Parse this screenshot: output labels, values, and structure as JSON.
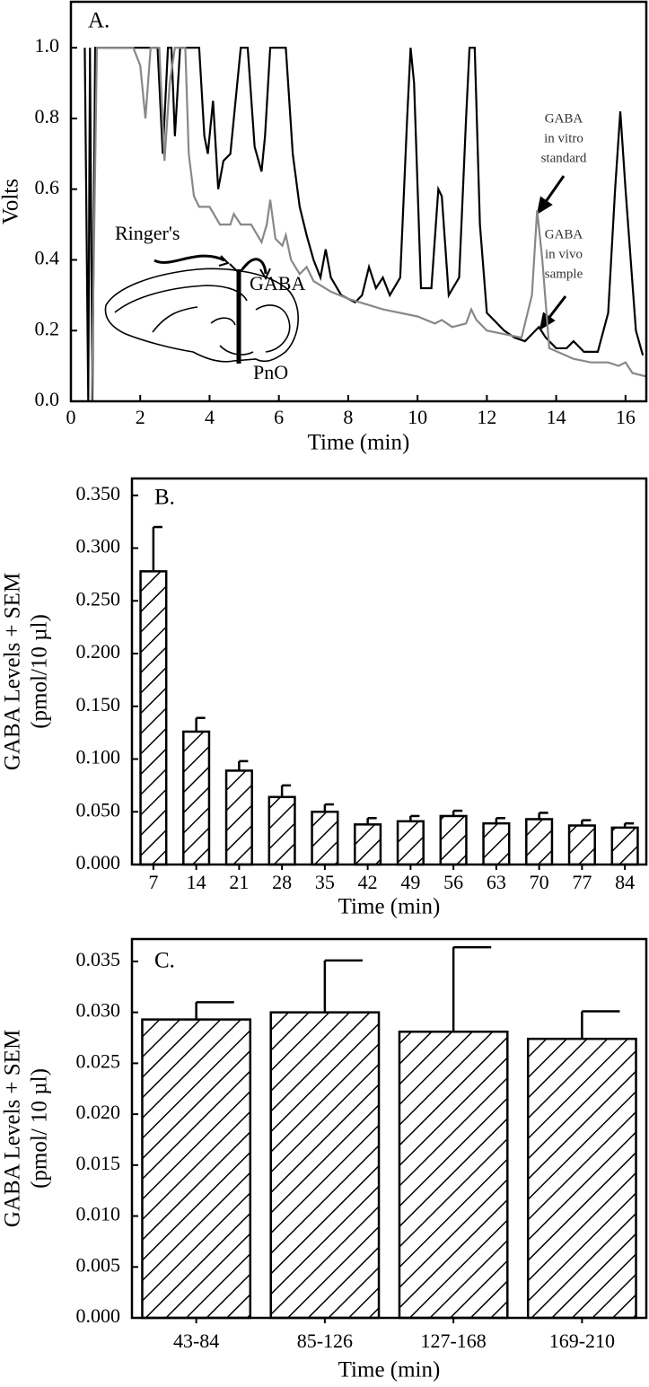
{
  "chart_data": [
    {
      "type": "line",
      "label": "A.",
      "xlabel": "Time (min)",
      "ylabel": "Volts",
      "xlim": [
        0,
        16.6
      ],
      "ylim": [
        0,
        1.13
      ],
      "xticks": [
        0,
        2,
        4,
        6,
        8,
        10,
        12,
        14,
        16
      ],
      "yticks": [
        {
          "value": 0,
          "label": "0.0"
        },
        {
          "value": 0.2,
          "label": "0.2"
        },
        {
          "value": 0.4,
          "label": "0.4"
        },
        {
          "value": 0.6,
          "label": "0.6"
        },
        {
          "value": 0.8,
          "label": "0.8"
        },
        {
          "value": 1,
          "label": "1.0"
        }
      ],
      "annotations": [
        "Ringer's",
        "GABA",
        "PnO"
      ],
      "callouts": [
        [
          "GABA",
          "in vitro",
          "standard"
        ],
        [
          "GABA",
          "in vivo",
          "sample"
        ]
      ],
      "series": [
        {
          "color": "#000000",
          "x": [
            0.4,
            0.5,
            0.55,
            0.62,
            0.7,
            2.5,
            2.65,
            2.8,
            2.9,
            3.0,
            3.15,
            3.7,
            3.85,
            3.95,
            4.1,
            4.25,
            4.4,
            4.6,
            4.8,
            4.9,
            5.1,
            5.3,
            5.5,
            5.6,
            5.75,
            6.2,
            6.4,
            6.6,
            6.8,
            7.0,
            7.2,
            7.35,
            7.5,
            7.8,
            8.2,
            8.4,
            8.6,
            8.8,
            9.0,
            9.2,
            9.5,
            9.7,
            9.8,
            9.9,
            10.1,
            10.4,
            10.6,
            10.7,
            10.9,
            11.2,
            11.4,
            11.5,
            11.65,
            11.8,
            12.0,
            12.5,
            12.8,
            13.1,
            13.4,
            13.5,
            13.7,
            14.0,
            14.3,
            14.5,
            14.8,
            15.2,
            15.5,
            15.7,
            15.85,
            16.0,
            16.3,
            16.5
          ],
          "values": [
            1.0,
            0.0,
            1.0,
            0.0,
            1.0,
            1.0,
            0.7,
            1.0,
            1.0,
            0.75,
            1.0,
            1.0,
            0.75,
            0.7,
            0.85,
            0.6,
            0.68,
            0.7,
            0.9,
            1.0,
            1.0,
            0.72,
            0.65,
            0.75,
            1.0,
            1.0,
            0.7,
            0.55,
            0.47,
            0.4,
            0.35,
            0.43,
            0.35,
            0.3,
            0.28,
            0.3,
            0.38,
            0.32,
            0.35,
            0.3,
            0.35,
            0.8,
            1.0,
            0.9,
            0.32,
            0.32,
            0.6,
            0.58,
            0.3,
            0.35,
            0.8,
            1.0,
            1.0,
            0.5,
            0.25,
            0.2,
            0.18,
            0.17,
            0.2,
            0.21,
            0.18,
            0.15,
            0.15,
            0.17,
            0.14,
            0.14,
            0.25,
            0.6,
            0.82,
            0.6,
            0.2,
            0.13
          ]
        },
        {
          "color": "#888888",
          "x": [
            0.6,
            0.75,
            1.8,
            2.0,
            2.15,
            2.3,
            2.55,
            2.7,
            2.85,
            3.0,
            3.3,
            3.4,
            3.55,
            3.7,
            4.0,
            4.3,
            4.6,
            4.7,
            4.9,
            5.2,
            5.5,
            5.65,
            5.75,
            5.9,
            6.1,
            6.2,
            6.35,
            6.6,
            6.8,
            7.0,
            7.5,
            8.0,
            9.0,
            10.0,
            10.5,
            10.7,
            11.0,
            11.4,
            11.55,
            11.7,
            12.0,
            12.5,
            13.0,
            13.3,
            13.45,
            13.6,
            13.8,
            14.5,
            15.0,
            15.5,
            15.8,
            16.0,
            16.2,
            16.6
          ],
          "values": [
            0.0,
            1.0,
            1.0,
            0.95,
            0.8,
            1.0,
            1.0,
            0.68,
            0.9,
            1.0,
            1.0,
            0.7,
            0.58,
            0.55,
            0.55,
            0.5,
            0.5,
            0.53,
            0.5,
            0.5,
            0.45,
            0.5,
            0.57,
            0.46,
            0.44,
            0.47,
            0.4,
            0.36,
            0.38,
            0.34,
            0.31,
            0.29,
            0.26,
            0.24,
            0.22,
            0.23,
            0.21,
            0.22,
            0.26,
            0.23,
            0.2,
            0.19,
            0.18,
            0.3,
            0.54,
            0.4,
            0.15,
            0.12,
            0.11,
            0.11,
            0.1,
            0.11,
            0.08,
            0.07
          ]
        }
      ]
    },
    {
      "type": "bar",
      "label": "B.",
      "xlabel": "Time (min)",
      "ylabel": [
        "GABA Levels + SEM",
        "(pmol/10 µl)"
      ],
      "ylim": [
        0,
        0.366
      ],
      "yticks": [
        {
          "value": 0,
          "label": "0.000"
        },
        {
          "value": 0.05,
          "label": "0.050"
        },
        {
          "value": 0.1,
          "label": "0.100"
        },
        {
          "value": 0.15,
          "label": "0.150"
        },
        {
          "value": 0.2,
          "label": "0.200"
        },
        {
          "value": 0.25,
          "label": "0.250"
        },
        {
          "value": 0.3,
          "label": "0.300"
        },
        {
          "value": 0.35,
          "label": "0.350"
        }
      ],
      "categories": [
        "7",
        "14",
        "21",
        "28",
        "35",
        "42",
        "49",
        "56",
        "63",
        "70",
        "77",
        "84"
      ],
      "values": [
        0.278,
        0.126,
        0.089,
        0.064,
        0.05,
        0.038,
        0.041,
        0.046,
        0.039,
        0.043,
        0.037,
        0.035
      ],
      "errors": [
        0.042,
        0.013,
        0.009,
        0.011,
        0.007,
        0.006,
        0.005,
        0.005,
        0.005,
        0.006,
        0.005,
        0.004
      ],
      "color": "#000000"
    },
    {
      "type": "bar",
      "label": "C.",
      "xlabel": "Time (min)",
      "ylabel": [
        "GABA Levels + SEM",
        "(pmol/ 10 µl)"
      ],
      "ylim": [
        0,
        0.0372
      ],
      "yticks": [
        {
          "value": 0,
          "label": "0.000"
        },
        {
          "value": 0.005,
          "label": "0.005"
        },
        {
          "value": 0.01,
          "label": "0.010"
        },
        {
          "value": 0.015,
          "label": "0.015"
        },
        {
          "value": 0.02,
          "label": "0.020"
        },
        {
          "value": 0.025,
          "label": "0.025"
        },
        {
          "value": 0.03,
          "label": "0.030"
        },
        {
          "value": 0.035,
          "label": "0.035"
        }
      ],
      "categories": [
        "43-84",
        "85-126",
        "127-168",
        "169-210"
      ],
      "values": [
        0.0293,
        0.03,
        0.0281,
        0.0274
      ],
      "errors": [
        0.0017,
        0.0051,
        0.0083,
        0.0027
      ],
      "color": "#000000"
    }
  ]
}
